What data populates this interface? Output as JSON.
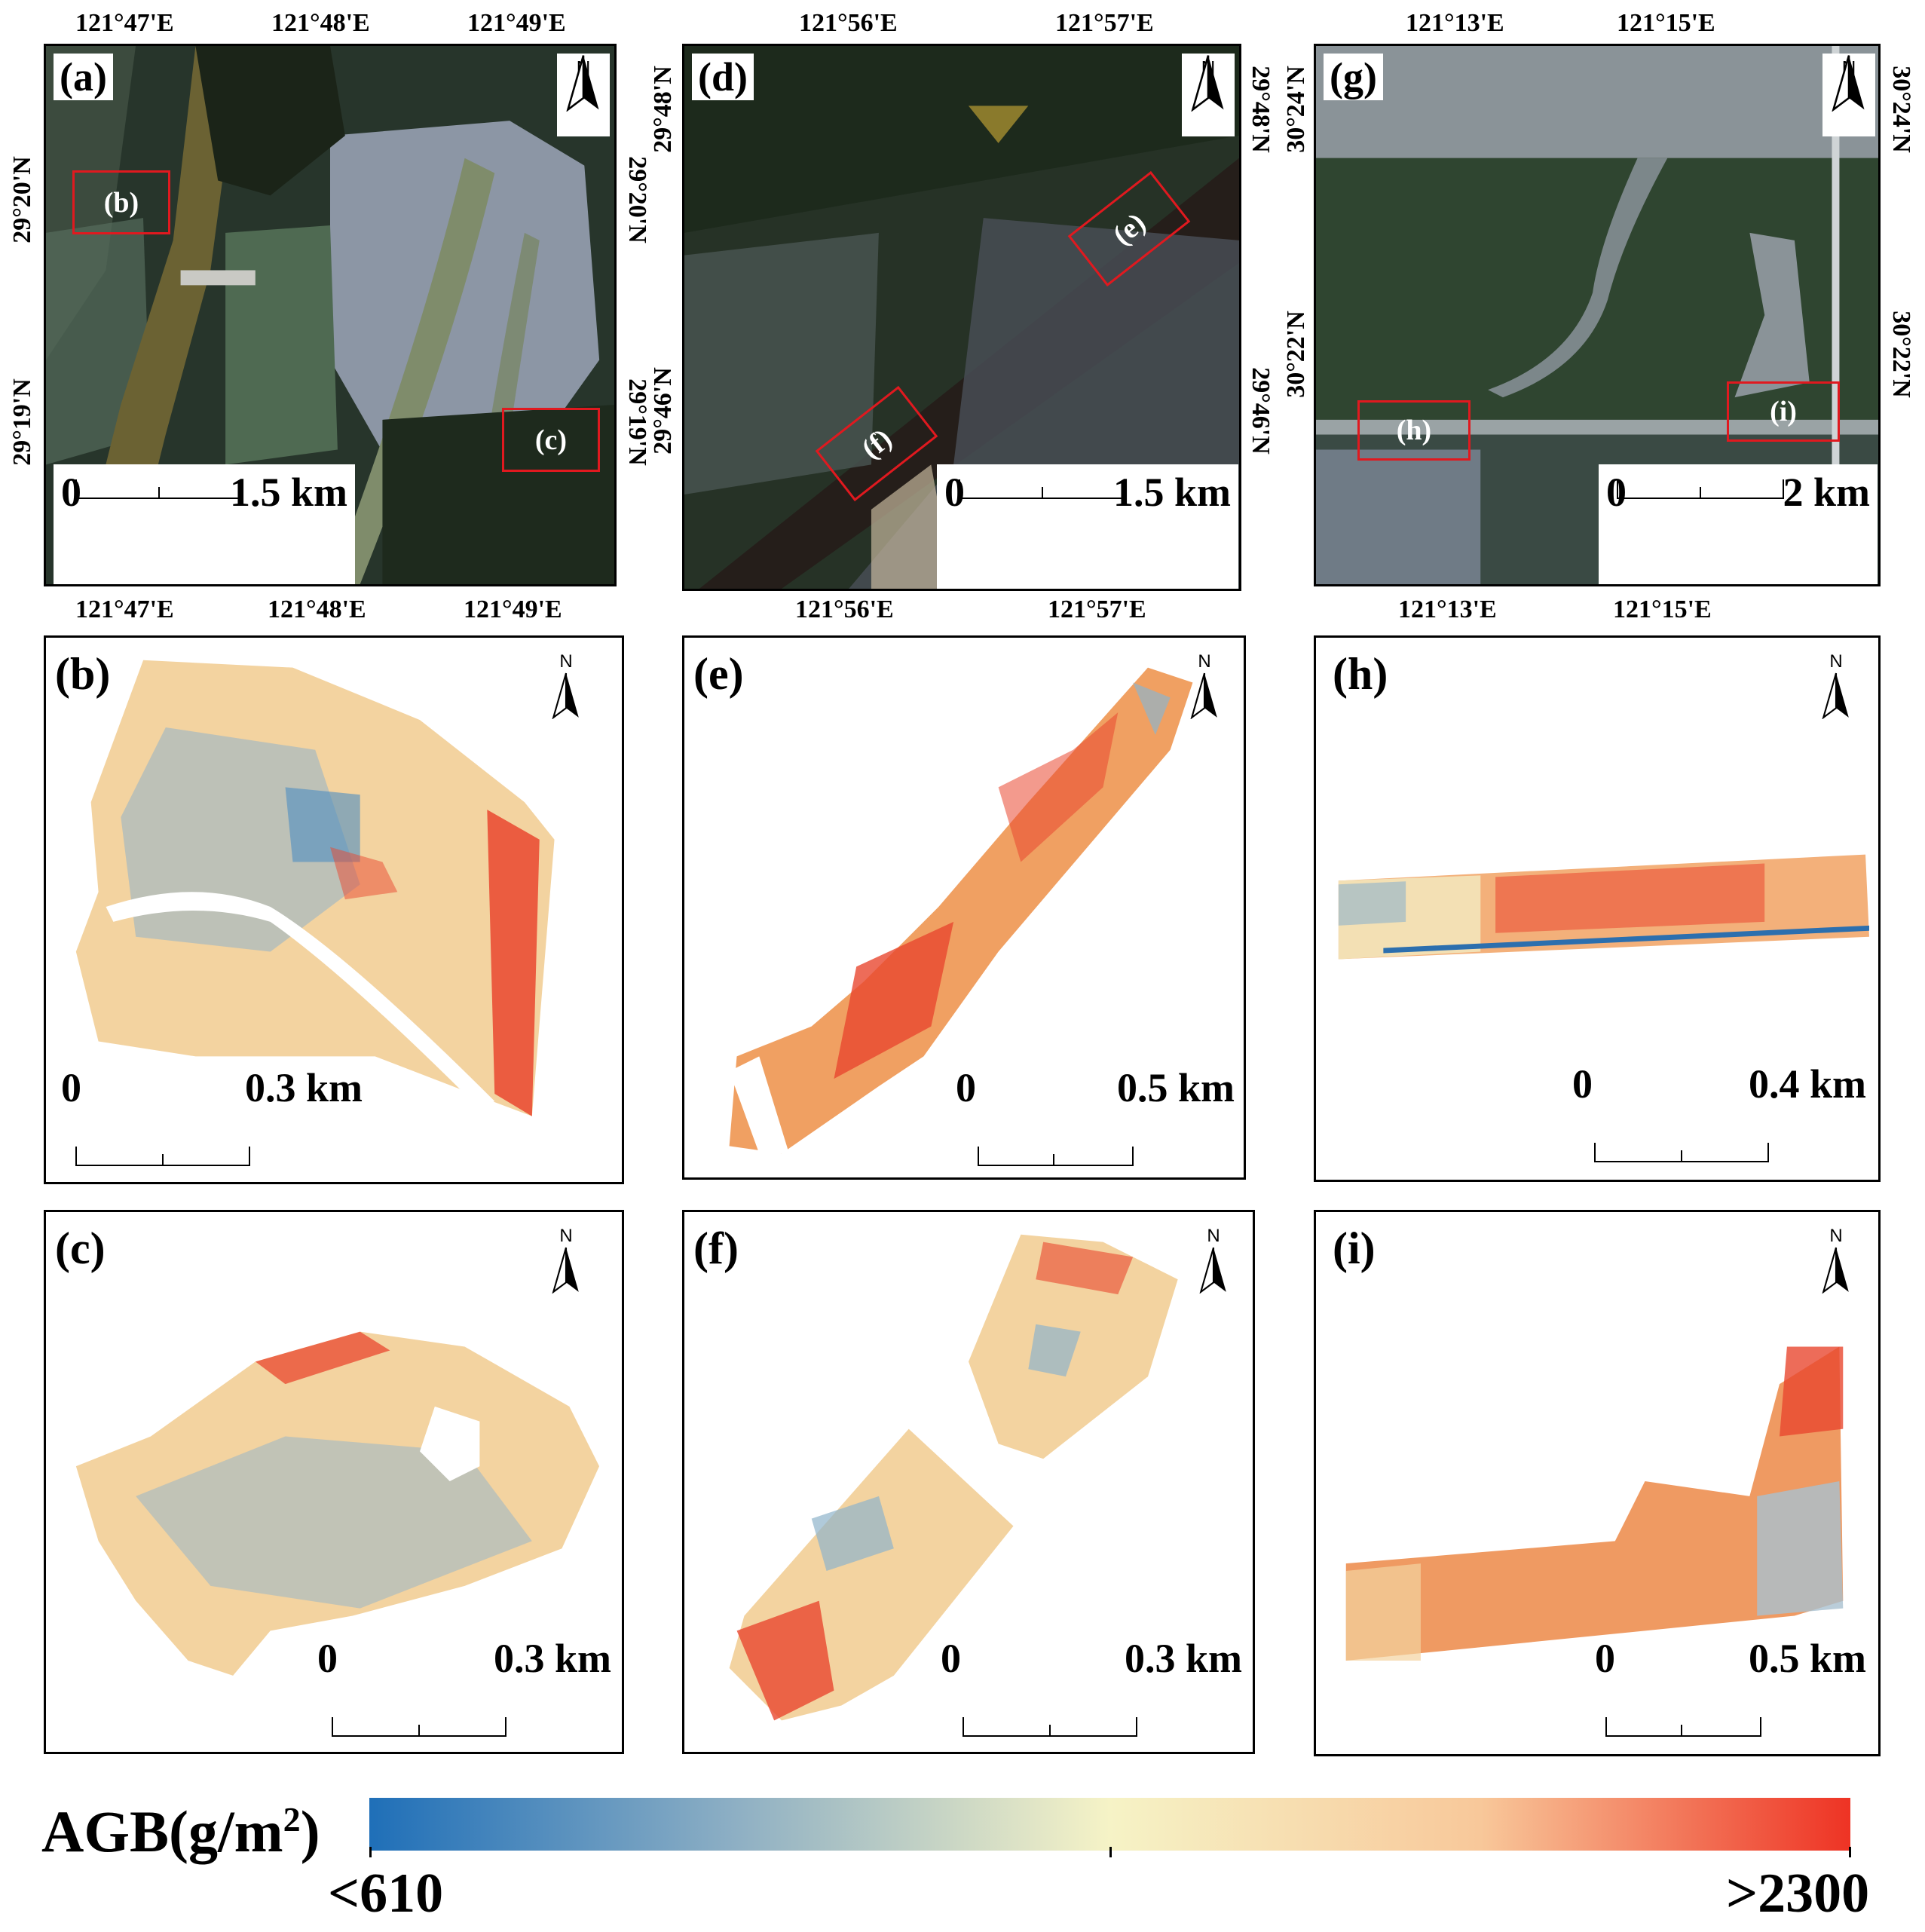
{
  "figure": {
    "panels": {
      "a": {
        "label": "(a)",
        "scale_zero": "0",
        "scale_dist": "1.5 km",
        "north": "N",
        "top_ticks": [
          "121°47'E",
          "121°48'E",
          "121°49'E"
        ],
        "bottom_ticks": [
          "121°47'E",
          "121°48'E",
          "121°49'E"
        ],
        "left_ticks": [
          "29°20'N",
          "29°19'N"
        ],
        "right_ticks": [
          "29°20'N",
          "29°19'N"
        ],
        "boxes": [
          "(b)",
          "(c)"
        ]
      },
      "d": {
        "label": "(d)",
        "scale_zero": "0",
        "scale_dist": "1.5 km",
        "north": "N",
        "top_ticks": [
          "121°56'E",
          "121°57'E"
        ],
        "bottom_ticks": [
          "121°56'E",
          "121°57'E"
        ],
        "left_ticks": [
          "29°48'N",
          "29°46'N"
        ],
        "right_ticks": [
          "29°48'N",
          "29°46'N"
        ],
        "boxes": [
          "(e)",
          "(f)"
        ]
      },
      "g": {
        "label": "(g)",
        "scale_zero": "0",
        "scale_dist": "2 km",
        "north": "N",
        "top_ticks": [
          "121°13'E",
          "121°15'E"
        ],
        "bottom_ticks": [
          "121°13'E",
          "121°15'E"
        ],
        "left_ticks": [
          "30°24'N",
          "30°22'N"
        ],
        "right_ticks": [
          "30°24'N",
          "30°22'N"
        ],
        "boxes": [
          "(h)",
          "(i)"
        ]
      },
      "b": {
        "label": "(b)",
        "scale_zero": "0",
        "scale_dist": "0.3 km",
        "north": "N"
      },
      "e": {
        "label": "(e)",
        "scale_zero": "0",
        "scale_dist": "0.5 km",
        "north": "N"
      },
      "h": {
        "label": "(h)",
        "scale_zero": "0",
        "scale_dist": "0.4 km",
        "north": "N"
      },
      "c": {
        "label": "(c)",
        "scale_zero": "0",
        "scale_dist": "0.3 km",
        "north": "N"
      },
      "f": {
        "label": "(f)",
        "scale_zero": "0",
        "scale_dist": "0.3 km",
        "north": "N"
      },
      "i": {
        "label": "(i)",
        "scale_zero": "0",
        "scale_dist": "0.5 km",
        "north": "N"
      }
    },
    "legend": {
      "title": "AGB(g/m",
      "title_sup": "2",
      "title_close": ")",
      "min_label": "<610",
      "max_label": ">2300",
      "colors": [
        "#1f6fb8",
        "#8fb0c4",
        "#f6f3c6",
        "#f8c89a",
        "#ee3324"
      ]
    },
    "colors": {
      "low": "#4f8fc4",
      "mid": "#f3d7a6",
      "high": "#e9472f",
      "box": "#e0191f"
    }
  }
}
